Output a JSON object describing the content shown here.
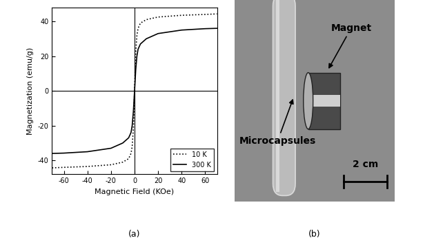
{
  "chart_data": {
    "type": "line",
    "panel_label": "(a)",
    "x_label": "Magnetic Field (KOe)",
    "y_label": "Magnetization (emu/g)",
    "x": [
      -70,
      -60,
      -40,
      -20,
      -10,
      -5,
      -3,
      -2,
      -1,
      -0.5,
      0,
      0.5,
      1,
      2,
      3,
      5,
      10,
      20,
      40,
      60,
      70
    ],
    "series": [
      {
        "name": "10 K",
        "color": "#000000",
        "line_style": "dotted",
        "values": [
          -44.3,
          -44,
          -43.5,
          -42.5,
          -41,
          -39,
          -36,
          -32,
          -22,
          -12,
          0,
          12,
          22,
          32,
          36,
          39,
          41,
          42.5,
          43.5,
          44,
          44.3
        ]
      },
      {
        "name": "300 K",
        "color": "#000000",
        "line_style": "solid",
        "values": [
          -36,
          -35.8,
          -35,
          -33,
          -30,
          -27,
          -24,
          -20,
          -12,
          -6,
          0,
          6,
          12,
          20,
          24,
          27,
          30,
          33,
          35,
          35.8,
          36
        ]
      }
    ],
    "xlim": [
      -70,
      70
    ],
    "xticks": [
      -60,
      -40,
      -20,
      0,
      20,
      40,
      60
    ],
    "ylim": [
      -48,
      48
    ],
    "yticks": [
      -40,
      -20,
      0,
      20,
      40
    ],
    "grid": false,
    "legend": "lower right"
  },
  "image": {
    "panel_label": "(b)",
    "labels": [
      "Magnet",
      "Microcapsules"
    ],
    "scale_bar": "2 cm"
  }
}
